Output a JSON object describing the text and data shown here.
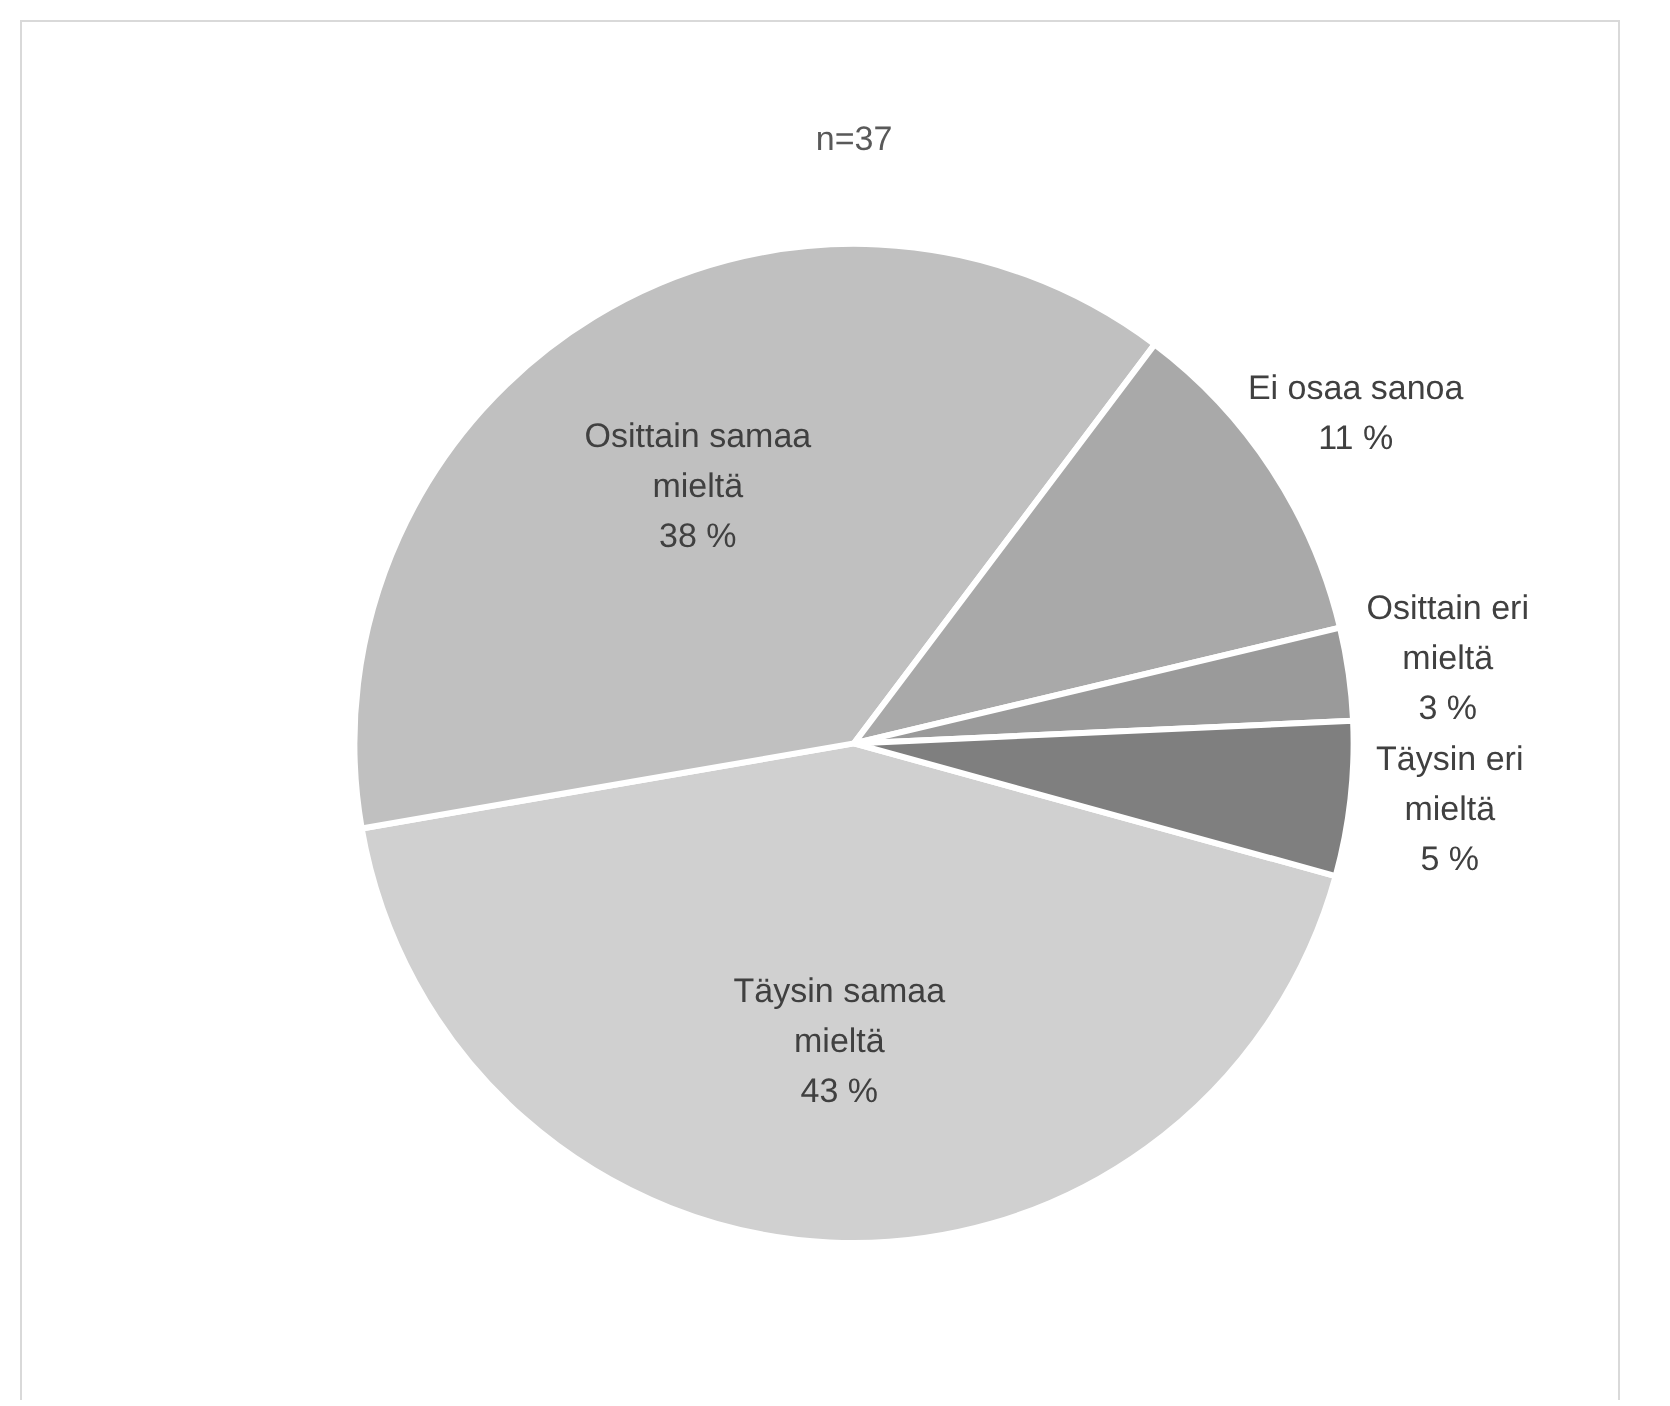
{
  "chart_data": {
    "type": "pie",
    "title": "n=37",
    "categories": [
      "Täysin samaa mieltä",
      "Osittain samaa mieltä",
      "Ei osaa sanoa",
      "Osittain eri mieltä",
      "Täysin eri mieltä"
    ],
    "values": [
      43,
      38,
      11,
      3,
      5
    ],
    "value_labels": [
      "43 %",
      "38 %",
      "11 %",
      "3 %",
      "5 %"
    ],
    "colors": [
      "#d0d0d0",
      "#c0c0c0",
      "#a9a9a9",
      "#9a9a9a",
      "#7f7f7f"
    ],
    "legend": false
  }
}
